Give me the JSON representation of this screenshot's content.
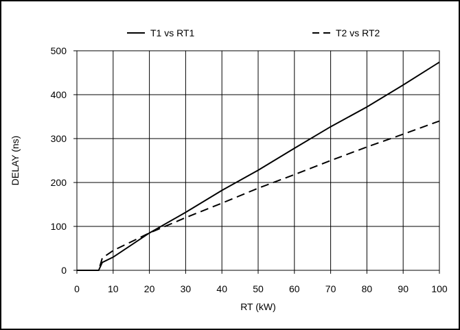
{
  "chart_data": {
    "type": "line",
    "xlabel": "RT (kW)",
    "ylabel": "DELAY (ns)",
    "xlim": [
      0,
      100
    ],
    "ylim": [
      0,
      500
    ],
    "x_ticks": [
      0,
      10,
      20,
      30,
      40,
      50,
      60,
      70,
      80,
      90,
      100
    ],
    "y_ticks": [
      0,
      100,
      200,
      300,
      400,
      500
    ],
    "grid": true,
    "legend_placement": "top",
    "series": [
      {
        "name": "T1 vs RT1",
        "style": "solid",
        "color": "#000000",
        "points": [
          [
            0,
            0
          ],
          [
            6,
            0
          ],
          [
            7,
            18
          ],
          [
            10,
            30
          ],
          [
            20,
            85
          ],
          [
            30,
            132
          ],
          [
            40,
            182
          ],
          [
            50,
            228
          ],
          [
            60,
            278
          ],
          [
            70,
            327
          ],
          [
            80,
            372
          ],
          [
            90,
            422
          ],
          [
            100,
            474
          ]
        ]
      },
      {
        "name": "T2 vs RT2",
        "style": "dashed",
        "color": "#000000",
        "points": [
          [
            0,
            0
          ],
          [
            6,
            0
          ],
          [
            7,
            28
          ],
          [
            10,
            45
          ],
          [
            20,
            85
          ],
          [
            30,
            120
          ],
          [
            40,
            153
          ],
          [
            50,
            187
          ],
          [
            60,
            218
          ],
          [
            70,
            250
          ],
          [
            80,
            281
          ],
          [
            90,
            310
          ],
          [
            100,
            340
          ]
        ]
      }
    ]
  }
}
